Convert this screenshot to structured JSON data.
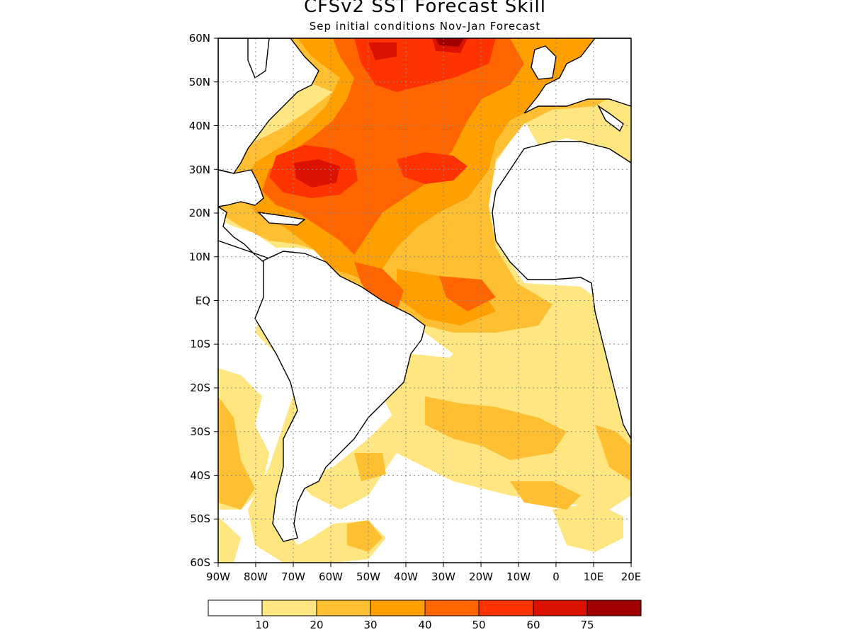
{
  "title": "CFSv2 SST Forecast Skill",
  "subtitle": "Sep initial conditions  Nov-Jan Forecast",
  "map": {
    "lat_labels": [
      "60N",
      "50N",
      "40N",
      "30N",
      "20N",
      "10N",
      "EQ",
      "10S",
      "20S",
      "30S",
      "40S",
      "50S",
      "60S"
    ],
    "lon_labels": [
      "90W",
      "80W",
      "70W",
      "60W",
      "50W",
      "40W",
      "30W",
      "20W",
      "10W",
      "0",
      "10E",
      "20E"
    ],
    "grid": "dotted"
  },
  "colorbar": {
    "levels": [
      "10",
      "20",
      "30",
      "40",
      "50",
      "60",
      "75"
    ],
    "colors": [
      "#ffffff",
      "#ffe680",
      "#ffbf33",
      "#ffa000",
      "#ff6600",
      "#ff3300",
      "#dd1100",
      "#a00000"
    ]
  }
}
